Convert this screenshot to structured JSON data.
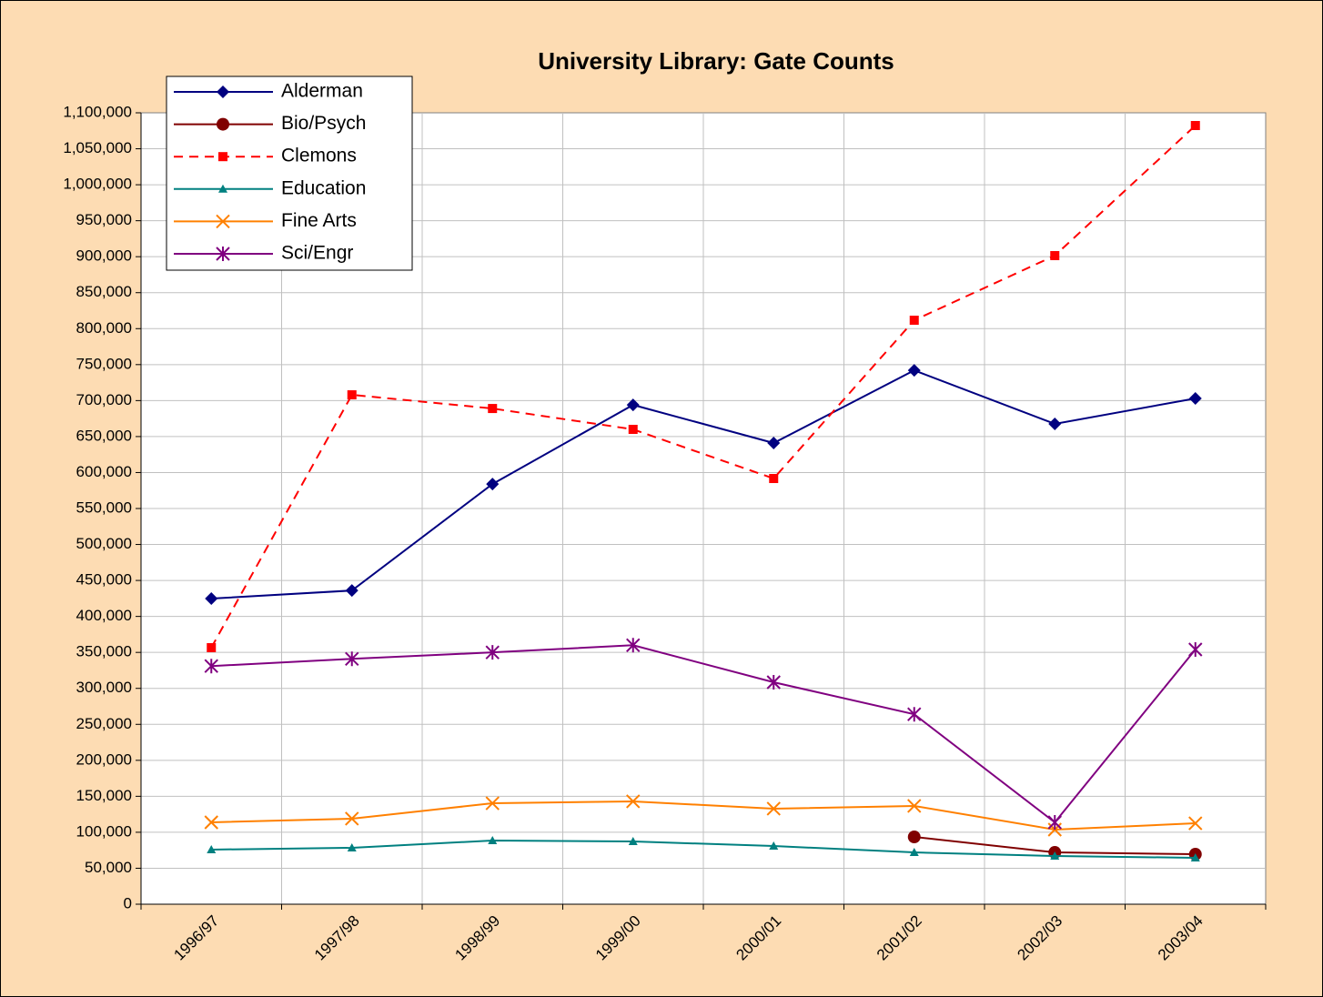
{
  "chart_data": {
    "type": "line",
    "title": "University Library:  Gate Counts",
    "categories": [
      "1996/97",
      "1997/98",
      "1998/99",
      "1999/00",
      "2000/01",
      "2001/02",
      "2002/03",
      "2003/04"
    ],
    "series": [
      {
        "name": "Alderman",
        "color": "#000080",
        "marker": "diamond",
        "dash": false,
        "values": [
          424800,
          436000,
          584000,
          694000,
          641000,
          742000,
          667600,
          703000
        ]
      },
      {
        "name": "Bio/Psych",
        "color": "#800000",
        "marker": "circle",
        "dash": false,
        "values": [
          null,
          null,
          null,
          null,
          null,
          93500,
          72000,
          69500
        ]
      },
      {
        "name": "Clemons",
        "color": "#FF0000",
        "marker": "square",
        "dash": true,
        "values": [
          356600,
          708000,
          689000,
          660000,
          591700,
          811700,
          901500,
          1082300
        ]
      },
      {
        "name": "Education",
        "color": "#008080",
        "marker": "triangle",
        "dash": false,
        "values": [
          75900,
          78400,
          88500,
          87200,
          80900,
          72000,
          67000,
          64500
        ]
      },
      {
        "name": "Fine Arts",
        "color": "#FF8000",
        "marker": "x",
        "dash": false,
        "values": [
          113800,
          118900,
          140300,
          142900,
          132800,
          136600,
          103700,
          112500
        ]
      },
      {
        "name": "Sci/Engr",
        "color": "#800080",
        "marker": "star",
        "dash": false,
        "values": [
          331000,
          341000,
          350000,
          360000,
          308500,
          264000,
          113800,
          354000
        ]
      }
    ],
    "ylim": [
      0,
      1100000
    ],
    "yticks": [
      0,
      {
        "value": 50000,
        "label": "50,000"
      },
      {
        "value": 100000,
        "label": "100,000"
      },
      {
        "value": 150000,
        "label": "150,000"
      },
      {
        "value": 200000,
        "label": "200,000"
      },
      {
        "value": 250000,
        "label": "250,000"
      },
      {
        "value": 300000,
        "label": "300,000"
      },
      {
        "value": 350000,
        "label": "350,000"
      },
      {
        "value": 400000,
        "label": "400,000"
      },
      {
        "value": 450000,
        "label": "450,000"
      },
      {
        "value": 500000,
        "label": "500,000"
      },
      {
        "value": 550000,
        "label": "550,000"
      },
      {
        "value": 600000,
        "label": "600,000"
      },
      {
        "value": 650000,
        "label": "650,000"
      },
      {
        "value": 700000,
        "label": "700,000"
      },
      {
        "value": 750000,
        "label": "750,000"
      },
      {
        "value": 800000,
        "label": "800,000"
      },
      {
        "value": 850000,
        "label": "850,000"
      },
      {
        "value": 900000,
        "label": "900,000"
      },
      {
        "value": 950000,
        "label": "950,000"
      },
      {
        "value": 1000000,
        "label": "1,000,000"
      },
      {
        "value": 1050000,
        "label": "1,050,000"
      },
      {
        "value": 1100000,
        "label": "1,100,000"
      }
    ],
    "grid": true,
    "legend": "top-left"
  }
}
